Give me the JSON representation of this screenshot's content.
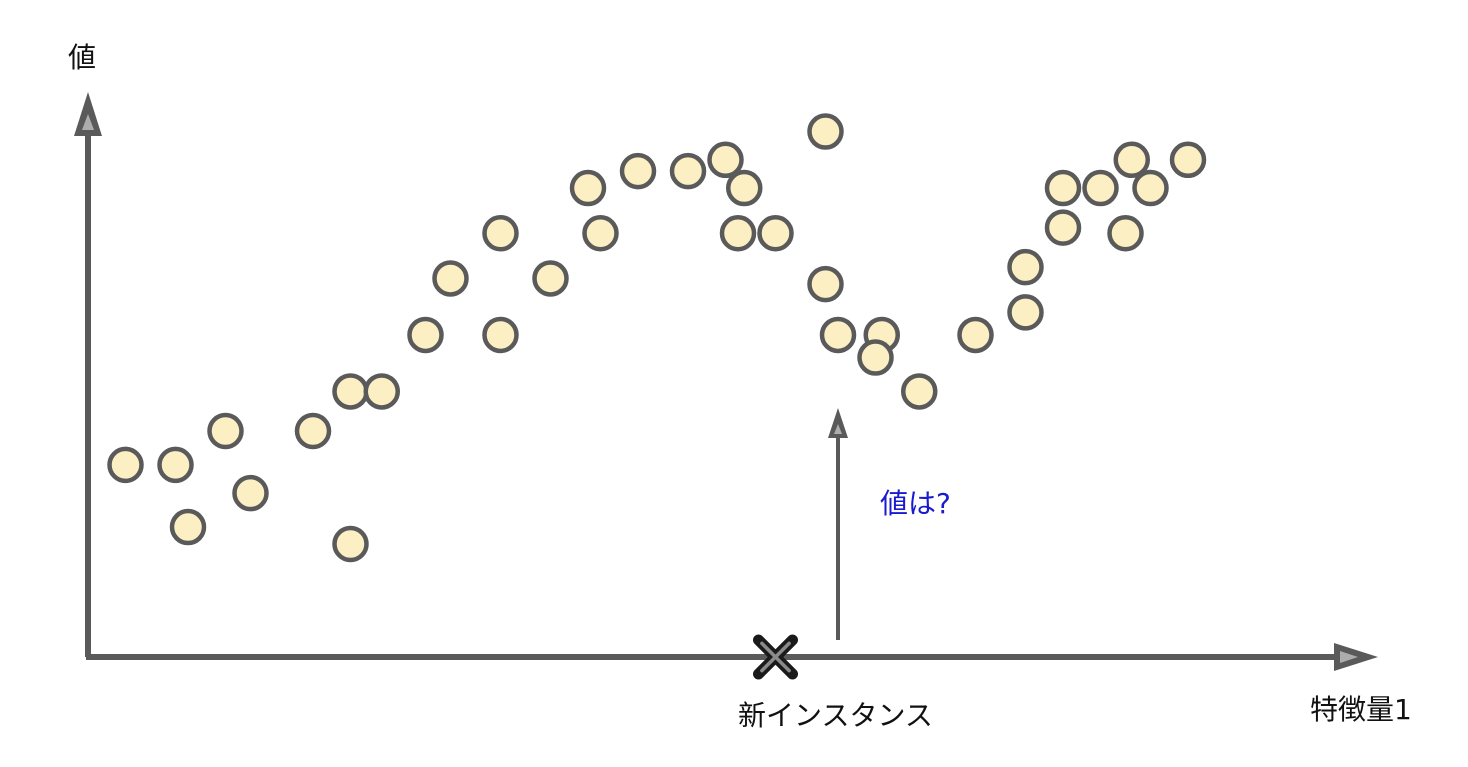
{
  "chart_data": {
    "type": "scatter",
    "title": "",
    "xlabel": "特徴量1",
    "ylabel": "値",
    "xlim": [
      0,
      100
    ],
    "ylim": [
      0,
      100
    ],
    "grid": false,
    "points": [
      {
        "x": 3,
        "y": 34
      },
      {
        "x": 7,
        "y": 34
      },
      {
        "x": 8,
        "y": 23
      },
      {
        "x": 11,
        "y": 40
      },
      {
        "x": 13,
        "y": 29
      },
      {
        "x": 18,
        "y": 40
      },
      {
        "x": 21,
        "y": 20
      },
      {
        "x": 21,
        "y": 47
      },
      {
        "x": 23.5,
        "y": 47
      },
      {
        "x": 27,
        "y": 57
      },
      {
        "x": 29,
        "y": 67
      },
      {
        "x": 33,
        "y": 57
      },
      {
        "x": 33,
        "y": 75
      },
      {
        "x": 37,
        "y": 67
      },
      {
        "x": 40,
        "y": 83
      },
      {
        "x": 41,
        "y": 75
      },
      {
        "x": 44,
        "y": 86
      },
      {
        "x": 48,
        "y": 86
      },
      {
        "x": 51,
        "y": 88
      },
      {
        "x": 52.5,
        "y": 83
      },
      {
        "x": 52,
        "y": 75
      },
      {
        "x": 55,
        "y": 75
      },
      {
        "x": 59,
        "y": 93
      },
      {
        "x": 59,
        "y": 66
      },
      {
        "x": 60,
        "y": 57
      },
      {
        "x": 63.5,
        "y": 57
      },
      {
        "x": 63,
        "y": 53
      },
      {
        "x": 66.5,
        "y": 47
      },
      {
        "x": 71,
        "y": 57
      },
      {
        "x": 75,
        "y": 69
      },
      {
        "x": 75,
        "y": 61
      },
      {
        "x": 78,
        "y": 76
      },
      {
        "x": 78,
        "y": 83
      },
      {
        "x": 81,
        "y": 83
      },
      {
        "x": 83,
        "y": 75
      },
      {
        "x": 83.5,
        "y": 88
      },
      {
        "x": 85,
        "y": 83
      },
      {
        "x": 88,
        "y": 88
      }
    ],
    "new_instance": {
      "x": 55,
      "y": 0
    },
    "annotations": [
      "新インスタンス",
      "値は?"
    ],
    "colors": {
      "marker_fill": "#fcefc4",
      "marker_edge": "#5a5a5a",
      "axis": "#5a5a5a",
      "question": "#1a1ad0"
    }
  },
  "labels": {
    "new_instance": "新インスタンス",
    "question": "値は?"
  }
}
